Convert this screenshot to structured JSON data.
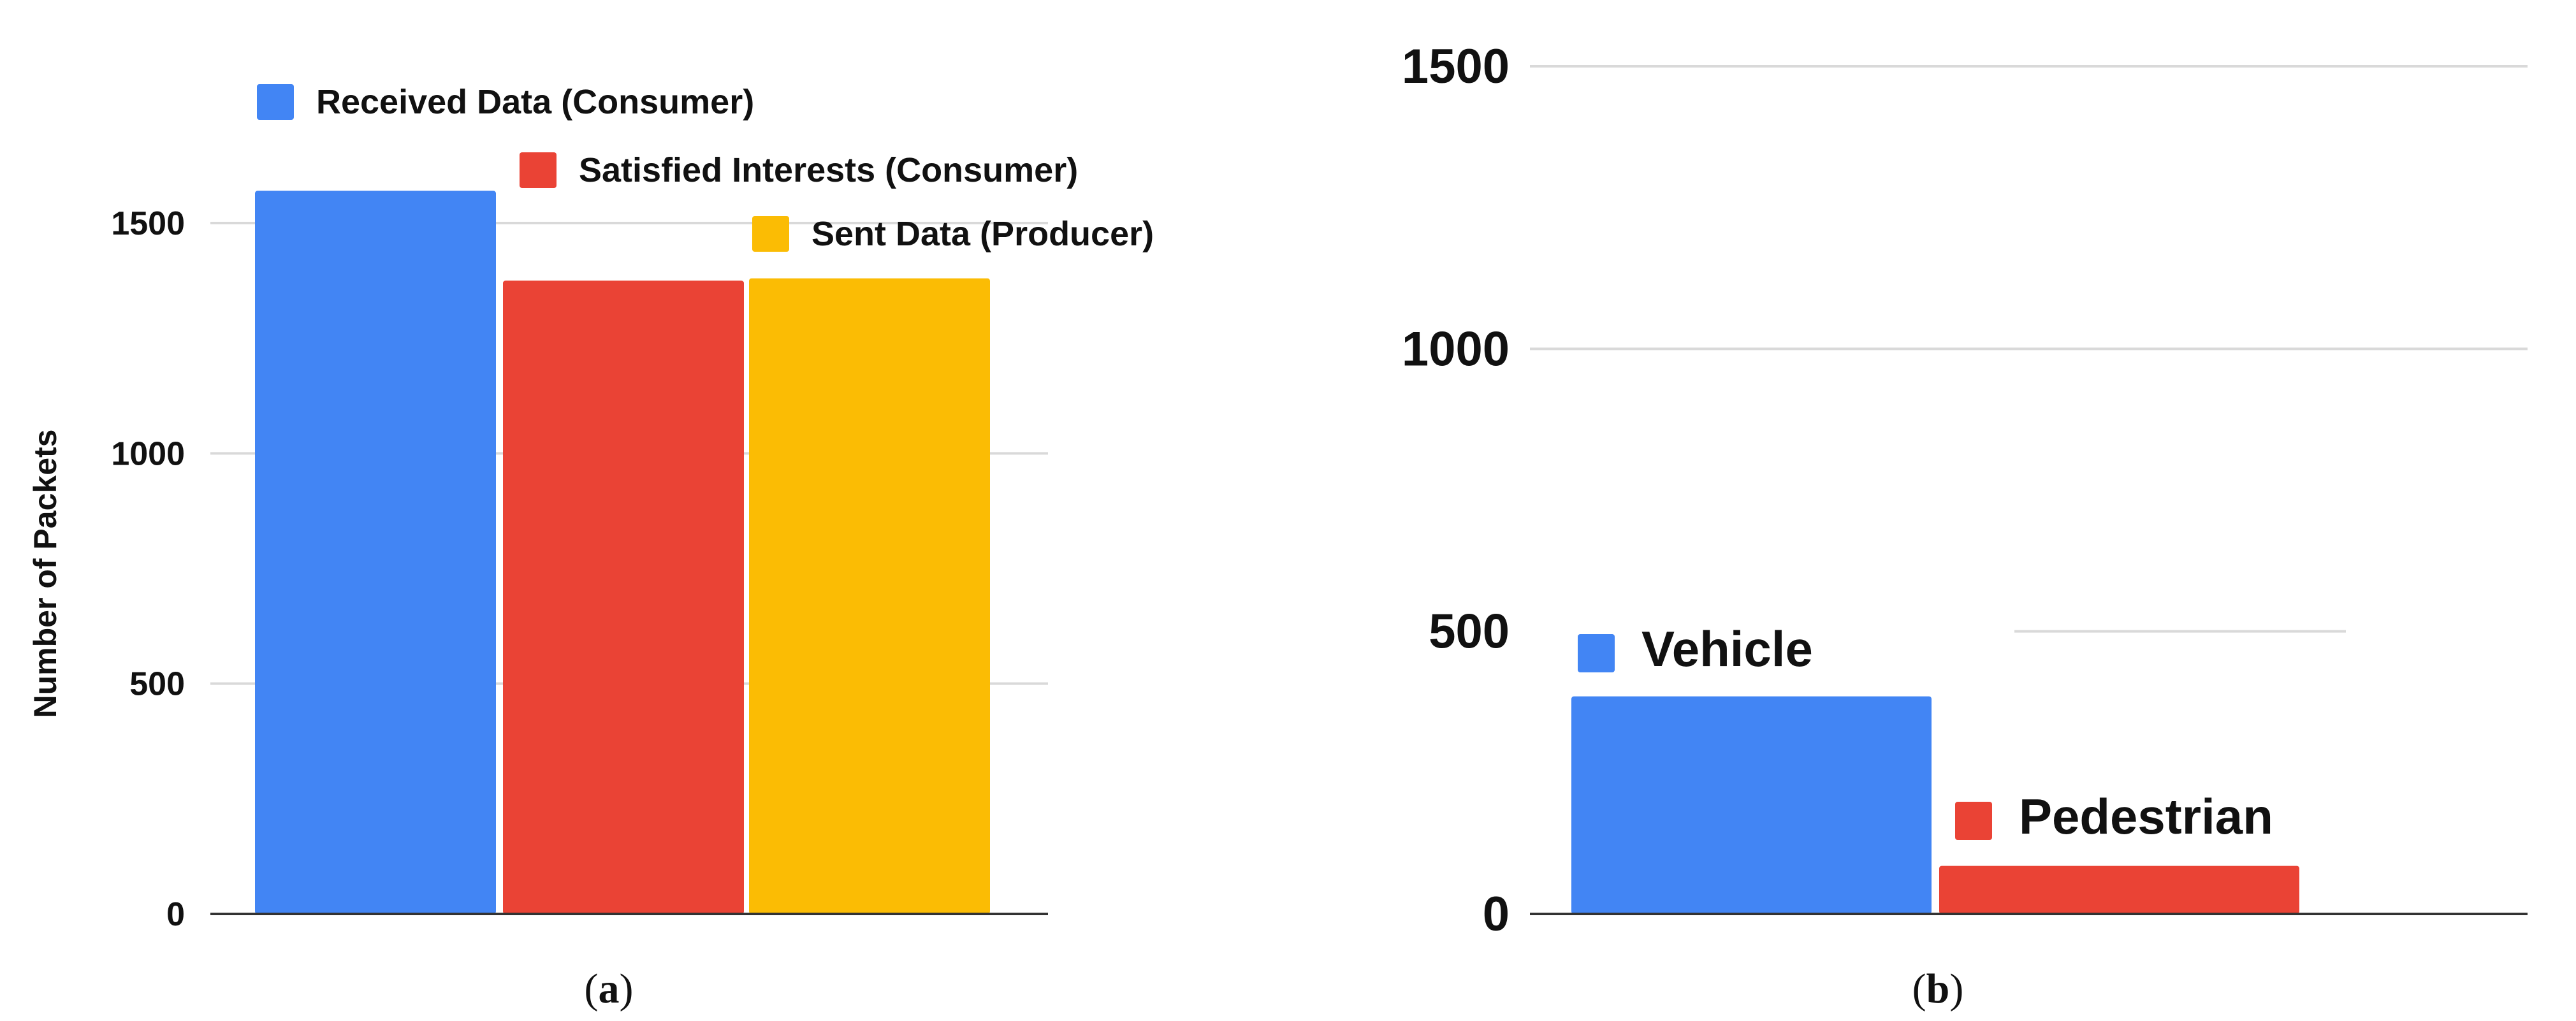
{
  "chart_data": [
    {
      "id": "a",
      "type": "bar",
      "title": "",
      "ylabel": "Number of Packets",
      "xlabel": "",
      "ylim": [
        0,
        1500
      ],
      "yticks": [
        0,
        500,
        1000,
        1500
      ],
      "grid": true,
      "legend_position": "top",
      "series": [
        {
          "name": "Received Data (Consumer)",
          "value": 1570,
          "color": "#4285f4"
        },
        {
          "name": "Satisfied Interests (Consumer)",
          "value": 1375,
          "color": "#ea4335"
        },
        {
          "name": "Sent Data (Producer)",
          "value": 1380,
          "color": "#fbbc04"
        }
      ],
      "caption_letter": "a"
    },
    {
      "id": "b",
      "type": "bar",
      "title": "",
      "ylabel": "",
      "xlabel": "",
      "ylim": [
        0,
        1500
      ],
      "yticks": [
        0,
        500,
        1000,
        1500
      ],
      "grid": true,
      "legend_position": "inline",
      "series": [
        {
          "name": "Vehicle",
          "value": 385,
          "color": "#4285f4"
        },
        {
          "name": "Pedestrian",
          "value": 85,
          "color": "#ea4335"
        }
      ],
      "caption_letter": "b"
    }
  ]
}
